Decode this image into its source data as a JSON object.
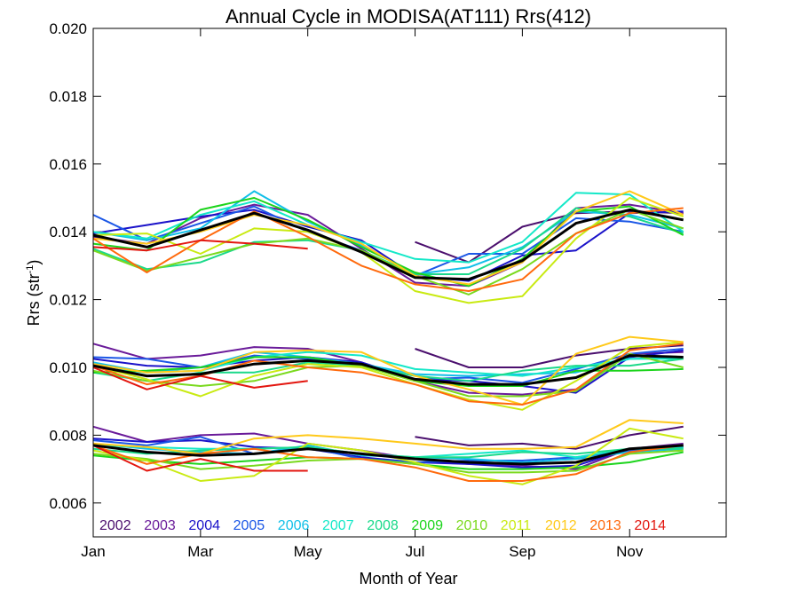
{
  "chart_data": {
    "type": "line",
    "title": "Annual Cycle in MODISA(AT111) Rrs(412)",
    "xlabel": "Month of Year",
    "ylabel": "Rrs (str",
    "ylabel_sup": "-1",
    "ylabel_close": ")",
    "xlim": [
      1,
      12.8
    ],
    "ylim": [
      0.005,
      0.02
    ],
    "x_ticks": [
      {
        "value": 1,
        "label": "Jan"
      },
      {
        "value": 3,
        "label": "Mar"
      },
      {
        "value": 5,
        "label": "May"
      },
      {
        "value": 7,
        "label": "Jul"
      },
      {
        "value": 9,
        "label": "Sep"
      },
      {
        "value": 11,
        "label": "Nov"
      }
    ],
    "y_ticks": [
      {
        "value": 0.006,
        "label": "0.006"
      },
      {
        "value": 0.008,
        "label": "0.008"
      },
      {
        "value": 0.01,
        "label": "0.010"
      },
      {
        "value": 0.012,
        "label": "0.012"
      },
      {
        "value": 0.014,
        "label": "0.014"
      },
      {
        "value": 0.016,
        "label": "0.016"
      },
      {
        "value": 0.018,
        "label": "0.018"
      },
      {
        "value": 0.02,
        "label": "0.020"
      }
    ],
    "grid": false,
    "legend_position": "bottom-left",
    "months": [
      1,
      2,
      3,
      4,
      5,
      6,
      7,
      8,
      9,
      10,
      11,
      12
    ],
    "series": [
      {
        "name": "2002",
        "color": "#4b0f6e",
        "groups": [
          [
            null,
            null,
            null,
            null,
            null,
            null,
            0.0137,
            0.0131,
            0.01415,
            0.01455,
            0.0146,
            0.01455
          ],
          [
            null,
            null,
            null,
            null,
            null,
            null,
            0.01055,
            0.01,
            0.01,
            0.01035,
            0.01055,
            0.01065
          ],
          [
            null,
            null,
            null,
            null,
            null,
            null,
            0.00795,
            0.0077,
            0.00775,
            0.0076,
            0.008,
            0.00825
          ]
        ]
      },
      {
        "name": "2003",
        "color": "#6a1b9a",
        "groups": [
          [
            0.01385,
            0.01365,
            0.0144,
            0.0148,
            0.0145,
            0.0135,
            0.0125,
            0.0124,
            0.0131,
            0.0147,
            0.0148,
            0.01455
          ],
          [
            0.0107,
            0.01025,
            0.01035,
            0.0106,
            0.01055,
            0.01015,
            0.0096,
            0.00925,
            0.0092,
            0.00935,
            0.0104,
            0.01045
          ],
          [
            0.00825,
            0.0078,
            0.008,
            0.00805,
            0.00775,
            0.00755,
            0.0073,
            0.00715,
            0.0071,
            0.007,
            0.0076,
            0.00775
          ]
        ]
      },
      {
        "name": "2004",
        "color": "#1a12c9",
        "groups": [
          [
            0.01395,
            0.0142,
            0.01445,
            0.01465,
            0.01415,
            0.01375,
            0.0127,
            0.01255,
            0.0133,
            0.01345,
            0.01455,
            0.0146
          ],
          [
            0.01025,
            0.01005,
            0.01,
            0.0102,
            0.0103,
            0.01015,
            0.00965,
            0.0096,
            0.00945,
            0.00925,
            0.0103,
            0.0105
          ],
          [
            0.0079,
            0.0078,
            0.00785,
            0.00765,
            0.0076,
            0.00735,
            0.0072,
            0.00715,
            0.00705,
            0.0071,
            0.0076,
            0.00765
          ]
        ]
      },
      {
        "name": "2005",
        "color": "#1b57e6",
        "groups": [
          [
            0.0145,
            0.01375,
            0.01425,
            0.01475,
            0.014,
            0.01345,
            0.0127,
            0.01335,
            0.01335,
            0.0144,
            0.0143,
            0.014
          ],
          [
            0.0103,
            0.01025,
            0.01,
            0.01035,
            0.01025,
            0.0101,
            0.00965,
            0.0097,
            0.00955,
            0.00995,
            0.0104,
            0.01055
          ],
          [
            0.00785,
            0.0077,
            0.00795,
            0.00745,
            0.00765,
            0.0073,
            0.0072,
            0.00725,
            0.00725,
            0.00735,
            0.00755,
            0.0077
          ]
        ]
      },
      {
        "name": "2006",
        "color": "#10bfe8",
        "groups": [
          [
            0.014,
            0.01375,
            0.0141,
            0.0152,
            0.0143,
            0.0136,
            0.01275,
            0.01295,
            0.01355,
            0.0146,
            0.0145,
            0.0141
          ],
          [
            0.01015,
            0.00985,
            0.01,
            0.01045,
            0.0103,
            0.0101,
            0.0098,
            0.00975,
            0.0098,
            0.00985,
            0.01025,
            0.0103
          ],
          [
            0.00775,
            0.0076,
            0.0075,
            0.00745,
            0.0077,
            0.0074,
            0.00735,
            0.0073,
            0.0072,
            0.0073,
            0.0075,
            0.0076
          ]
        ]
      },
      {
        "name": "2007",
        "color": "#14e8c8",
        "groups": [
          [
            0.014,
            0.0138,
            0.0145,
            0.0149,
            0.0142,
            0.0137,
            0.0132,
            0.0131,
            0.0137,
            0.01515,
            0.0151,
            0.014
          ],
          [
            0.01,
            0.00985,
            0.0099,
            0.0103,
            0.01045,
            0.01035,
            0.00995,
            0.00985,
            0.00975,
            0.01,
            0.01025,
            0.01025
          ],
          [
            0.0077,
            0.00765,
            0.0076,
            0.0076,
            0.00765,
            0.00745,
            0.00735,
            0.00745,
            0.00755,
            0.00735,
            0.0076,
            0.00765
          ]
        ]
      },
      {
        "name": "2008",
        "color": "#1bd98a",
        "groups": [
          [
            0.0135,
            0.0129,
            0.0131,
            0.0137,
            0.01375,
            0.01345,
            0.01275,
            0.01275,
            0.0135,
            0.0147,
            0.01445,
            0.01395
          ],
          [
            0.00985,
            0.0096,
            0.00985,
            0.00985,
            0.01015,
            0.01005,
            0.00975,
            0.0096,
            0.0099,
            0.01005,
            0.01005,
            0.01025
          ],
          [
            0.0076,
            0.00745,
            0.00755,
            0.0076,
            0.00765,
            0.00745,
            0.00735,
            0.00735,
            0.0075,
            0.00745,
            0.0076,
            0.0076
          ]
        ]
      },
      {
        "name": "2009",
        "color": "#1cd41c",
        "groups": [
          [
            0.01365,
            0.01345,
            0.01465,
            0.015,
            0.01435,
            0.01355,
            0.0128,
            0.0124,
            0.0132,
            0.0146,
            0.01475,
            0.0139
          ],
          [
            0.00985,
            0.0099,
            0.01,
            0.0103,
            0.0103,
            0.01005,
            0.0096,
            0.00945,
            0.00945,
            0.0099,
            0.0099,
            0.00995
          ],
          [
            0.0074,
            0.00725,
            0.00715,
            0.00725,
            0.00735,
            0.0073,
            0.00715,
            0.007,
            0.007,
            0.00705,
            0.0072,
            0.0075
          ]
        ]
      },
      {
        "name": "2010",
        "color": "#7ad91e",
        "groups": [
          [
            0.01345,
            0.01285,
            0.01325,
            0.01365,
            0.0138,
            0.01345,
            0.0127,
            0.01215,
            0.0129,
            0.01395,
            0.01465,
            0.0141
          ],
          [
            0.0099,
            0.0096,
            0.00945,
            0.0096,
            0.01,
            0.01005,
            0.0096,
            0.00915,
            0.00915,
            0.0093,
            0.0104,
            0.01
          ],
          [
            0.00745,
            0.0073,
            0.007,
            0.0071,
            0.00725,
            0.0073,
            0.00715,
            0.0069,
            0.0069,
            0.00695,
            0.00745,
            0.00755
          ]
        ]
      },
      {
        "name": "2011",
        "color": "#c9ea12",
        "groups": [
          [
            0.0139,
            0.01395,
            0.01335,
            0.0141,
            0.014,
            0.0134,
            0.01225,
            0.0119,
            0.0121,
            0.0138,
            0.015,
            0.01445
          ],
          [
            0.01005,
            0.00965,
            0.00915,
            0.00975,
            0.0101,
            0.01,
            0.0095,
            0.00905,
            0.00875,
            0.0096,
            0.0106,
            0.01075
          ],
          [
            0.00755,
            0.00725,
            0.00665,
            0.0068,
            0.00775,
            0.00755,
            0.0072,
            0.0068,
            0.00655,
            0.0071,
            0.0082,
            0.0079
          ]
        ]
      },
      {
        "name": "2012",
        "color": "#ffc91a",
        "groups": [
          [
            0.0138,
            0.01365,
            0.014,
            0.0145,
            0.0142,
            0.01365,
            0.0127,
            0.01245,
            0.0131,
            0.0146,
            0.0152,
            0.0145
          ],
          [
            0.0101,
            0.00985,
            0.0099,
            0.01045,
            0.0105,
            0.01045,
            0.00975,
            0.00935,
            0.0089,
            0.0104,
            0.0109,
            0.01075
          ],
          [
            0.00775,
            0.00765,
            0.00745,
            0.0079,
            0.008,
            0.0079,
            0.00775,
            0.0076,
            0.0076,
            0.00765,
            0.00845,
            0.00835
          ]
        ]
      },
      {
        "name": "2013",
        "color": "#ff6a0d",
        "groups": [
          [
            0.0138,
            0.0128,
            0.01375,
            0.0146,
            0.01385,
            0.013,
            0.01245,
            0.01225,
            0.0126,
            0.01395,
            0.01455,
            0.0147
          ],
          [
            0.01005,
            0.0095,
            0.00975,
            0.0102,
            0.01,
            0.00985,
            0.0095,
            0.009,
            0.0089,
            0.00935,
            0.0105,
            0.0107
          ],
          [
            0.0077,
            0.00715,
            0.00745,
            0.0076,
            0.00735,
            0.0073,
            0.00705,
            0.00665,
            0.00665,
            0.00685,
            0.0075,
            0.0077
          ]
        ]
      },
      {
        "name": "2014",
        "color": "#e3160f",
        "groups": [
          [
            0.01355,
            0.01345,
            0.01375,
            0.01365,
            0.0135,
            null,
            null,
            null,
            null,
            null,
            null,
            null
          ],
          [
            0.01,
            0.00935,
            0.00975,
            0.0094,
            0.0096,
            null,
            null,
            null,
            null,
            null,
            null,
            null
          ],
          [
            0.0077,
            0.00695,
            0.0073,
            0.00695,
            0.00695,
            null,
            null,
            null,
            null,
            null,
            null,
            null
          ]
        ]
      }
    ],
    "mean_color": "#000000",
    "mean": [
      [
        0.0139,
        0.01355,
        0.01405,
        0.01455,
        0.01405,
        0.0134,
        0.01265,
        0.0126,
        0.01315,
        0.01425,
        0.01465,
        0.01435
      ],
      [
        0.01005,
        0.00975,
        0.0098,
        0.0101,
        0.0102,
        0.0101,
        0.00965,
        0.0095,
        0.0095,
        0.0097,
        0.01035,
        0.0103
      ],
      [
        0.0077,
        0.0075,
        0.0074,
        0.00745,
        0.0076,
        0.00745,
        0.0073,
        0.0072,
        0.00715,
        0.0072,
        0.0076,
        0.0077
      ]
    ]
  }
}
